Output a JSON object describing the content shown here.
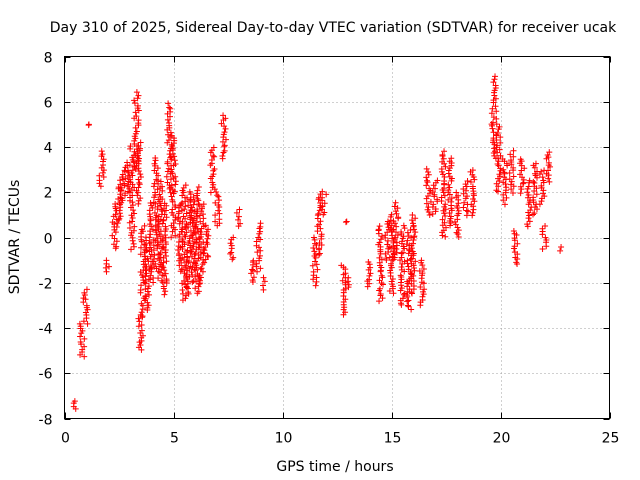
{
  "chart_data": {
    "type": "scatter",
    "title": "Day 310 of 2025, Sidereal Day-to-day VTEC variation (SDTVAR) for receiver ucak",
    "xlabel": "GPS time / hours",
    "ylabel": "SDTVAR / TECUs",
    "xlim": [
      0,
      25
    ],
    "ylim": [
      -8,
      8
    ],
    "xticks": [
      0,
      5,
      10,
      15,
      20,
      25
    ],
    "yticks": [
      -8,
      -6,
      -4,
      -2,
      0,
      2,
      4,
      6,
      8
    ],
    "xtick_labels": [
      "0",
      "5",
      "10",
      "15",
      "20",
      "25"
    ],
    "ytick_labels": [
      "-8",
      "-6",
      "-4",
      "-2",
      "0",
      "2",
      "4",
      "6",
      "8"
    ],
    "grid": true,
    "marker": "+",
    "color": "#ff0000",
    "series": [
      {
        "name": "SDTVAR",
        "clusters": [
          {
            "x": 0.5,
            "y0": -7.6,
            "y1": -7.2
          },
          {
            "x": 0.8,
            "y0": -5.3,
            "y1": -3.8
          },
          {
            "x": 0.95,
            "y0": -3.8,
            "y1": -2.3
          },
          {
            "x": 1.15,
            "y0": 5.0,
            "y1": 5.0
          },
          {
            "x": 1.7,
            "y0": 2.3,
            "y1": 3.8
          },
          {
            "x": 2.0,
            "y0": -1.5,
            "y1": -1.0
          },
          {
            "x": 2.3,
            "y0": -0.5,
            "y1": 1.5
          },
          {
            "x": 2.5,
            "y0": 0.5,
            "y1": 2.5
          },
          {
            "x": 2.7,
            "y0": 1.5,
            "y1": 3.0
          },
          {
            "x": 2.9,
            "y0": 2.0,
            "y1": 3.3
          },
          {
            "x": 3.1,
            "y0": -0.5,
            "y1": 4.0
          },
          {
            "x": 3.3,
            "y0": 3.0,
            "y1": 6.4
          },
          {
            "x": 3.4,
            "y0": 1.5,
            "y1": 4.2
          },
          {
            "x": 3.5,
            "y0": -5.0,
            "y1": -3.5
          },
          {
            "x": 3.6,
            "y0": -3.5,
            "y1": 0.5
          },
          {
            "x": 3.8,
            "y0": -3.2,
            "y1": 0.0
          },
          {
            "x": 4.0,
            "y0": -2.0,
            "y1": 1.5
          },
          {
            "x": 4.2,
            "y0": -1.5,
            "y1": 3.5
          },
          {
            "x": 4.4,
            "y0": -2.0,
            "y1": 2.5
          },
          {
            "x": 4.6,
            "y0": -2.5,
            "y1": 1.5
          },
          {
            "x": 4.8,
            "y0": 2.0,
            "y1": 5.9
          },
          {
            "x": 5.0,
            "y0": 0.0,
            "y1": 4.5
          },
          {
            "x": 5.3,
            "y0": -1.5,
            "y1": 1.5
          },
          {
            "x": 5.5,
            "y0": -2.8,
            "y1": 2.3
          },
          {
            "x": 5.7,
            "y0": -2.5,
            "y1": 2.0
          },
          {
            "x": 5.9,
            "y0": -2.0,
            "y1": 1.8
          },
          {
            "x": 6.1,
            "y0": -2.5,
            "y1": 2.2
          },
          {
            "x": 6.3,
            "y0": -2.0,
            "y1": 1.5
          },
          {
            "x": 6.5,
            "y0": -1.0,
            "y1": 0.5
          },
          {
            "x": 6.8,
            "y0": 2.0,
            "y1": 4.0
          },
          {
            "x": 7.0,
            "y0": 0.5,
            "y1": 2.0
          },
          {
            "x": 7.3,
            "y0": 3.5,
            "y1": 5.4
          },
          {
            "x": 7.7,
            "y0": -1.0,
            "y1": 0.0
          },
          {
            "x": 8.0,
            "y0": 0.5,
            "y1": 1.2
          },
          {
            "x": 8.6,
            "y0": -2.0,
            "y1": -1.0
          },
          {
            "x": 8.9,
            "y0": -1.5,
            "y1": 0.6
          },
          {
            "x": 9.2,
            "y0": -2.3,
            "y1": -1.8
          },
          {
            "x": 11.5,
            "y0": -2.1,
            "y1": 0.0
          },
          {
            "x": 11.7,
            "y0": -0.8,
            "y1": 1.9
          },
          {
            "x": 11.9,
            "y0": 1.0,
            "y1": 2.0
          },
          {
            "x": 12.8,
            "y0": -3.4,
            "y1": -1.2
          },
          {
            "x": 13.1,
            "y0": -2.2,
            "y1": -1.8
          },
          {
            "x": 13.0,
            "y0": 0.7,
            "y1": 0.7
          },
          {
            "x": 14.0,
            "y0": -2.2,
            "y1": -1.1
          },
          {
            "x": 14.5,
            "y0": -2.8,
            "y1": 0.5
          },
          {
            "x": 14.8,
            "y0": -1.0,
            "y1": 0.7
          },
          {
            "x": 15.0,
            "y0": -2.5,
            "y1": 1.0
          },
          {
            "x": 15.2,
            "y0": -1.0,
            "y1": 1.5
          },
          {
            "x": 15.5,
            "y0": -3.0,
            "y1": 0.5
          },
          {
            "x": 15.8,
            "y0": -3.2,
            "y1": 0.3
          },
          {
            "x": 16.0,
            "y0": -2.5,
            "y1": 1.0
          },
          {
            "x": 16.4,
            "y0": -3.0,
            "y1": -1.0
          },
          {
            "x": 16.7,
            "y0": 1.0,
            "y1": 3.0
          },
          {
            "x": 17.0,
            "y0": 1.0,
            "y1": 2.5
          },
          {
            "x": 17.4,
            "y0": 0.0,
            "y1": 3.8
          },
          {
            "x": 17.7,
            "y0": 0.5,
            "y1": 3.5
          },
          {
            "x": 18.0,
            "y0": 0.0,
            "y1": 2.0
          },
          {
            "x": 18.4,
            "y0": 1.0,
            "y1": 2.5
          },
          {
            "x": 18.7,
            "y0": 1.0,
            "y1": 3.0
          },
          {
            "x": 19.7,
            "y0": 3.5,
            "y1": 7.1
          },
          {
            "x": 19.9,
            "y0": 2.0,
            "y1": 5.0
          },
          {
            "x": 20.2,
            "y0": 1.5,
            "y1": 3.5
          },
          {
            "x": 20.5,
            "y0": 2.0,
            "y1": 3.8
          },
          {
            "x": 20.7,
            "y0": -1.2,
            "y1": 0.3
          },
          {
            "x": 21.0,
            "y0": 2.0,
            "y1": 3.5
          },
          {
            "x": 21.3,
            "y0": 0.5,
            "y1": 2.5
          },
          {
            "x": 21.6,
            "y0": 1.0,
            "y1": 3.3
          },
          {
            "x": 21.9,
            "y0": 1.5,
            "y1": 3.0
          },
          {
            "x": 22.2,
            "y0": 2.5,
            "y1": 3.8
          },
          {
            "x": 22.0,
            "y0": -0.5,
            "y1": 0.5
          },
          {
            "x": 22.8,
            "y0": -0.6,
            "y1": -0.4
          }
        ]
      }
    ]
  }
}
